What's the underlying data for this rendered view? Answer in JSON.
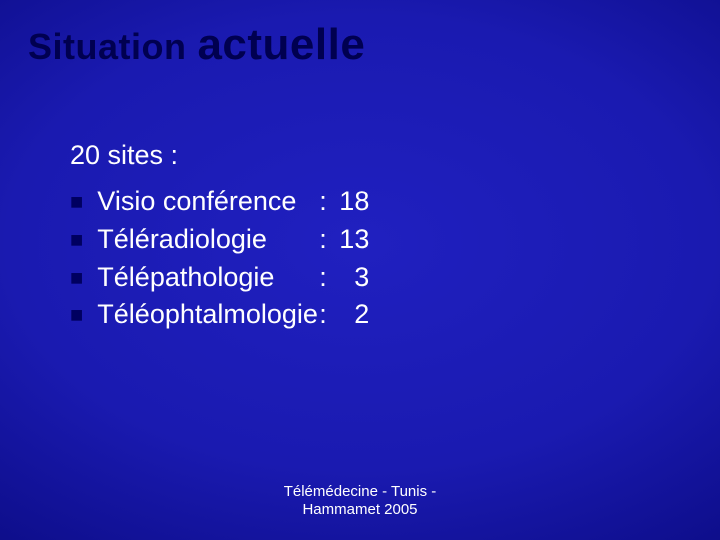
{
  "title": {
    "word1": "Situation",
    "word2": "actuelle"
  },
  "content": {
    "heading": "20 sites :",
    "items": [
      {
        "label": "Visio conférence",
        "colon": ":",
        "value": "18"
      },
      {
        "label": "Téléradiologie",
        "colon": ":",
        "value": "13"
      },
      {
        "label": "Télépathologie",
        "colon": ":",
        "value": "  3"
      },
      {
        "label": "Téléophtalmologie",
        "colon": ":",
        "value": "  2"
      }
    ]
  },
  "footer": {
    "line1": "Télémédecine - Tunis -",
    "line2": "Hammamet 2005"
  },
  "style": {
    "slide_bg_center": "#2020c0",
    "slide_bg_edge": "#010140",
    "title_color": "#000050",
    "bullet_color": "#000060",
    "text_color": "#ffffff",
    "title_word1_fontsize": 36,
    "title_word2_fontsize": 44,
    "body_fontsize": 27,
    "footer_fontsize": 15
  }
}
